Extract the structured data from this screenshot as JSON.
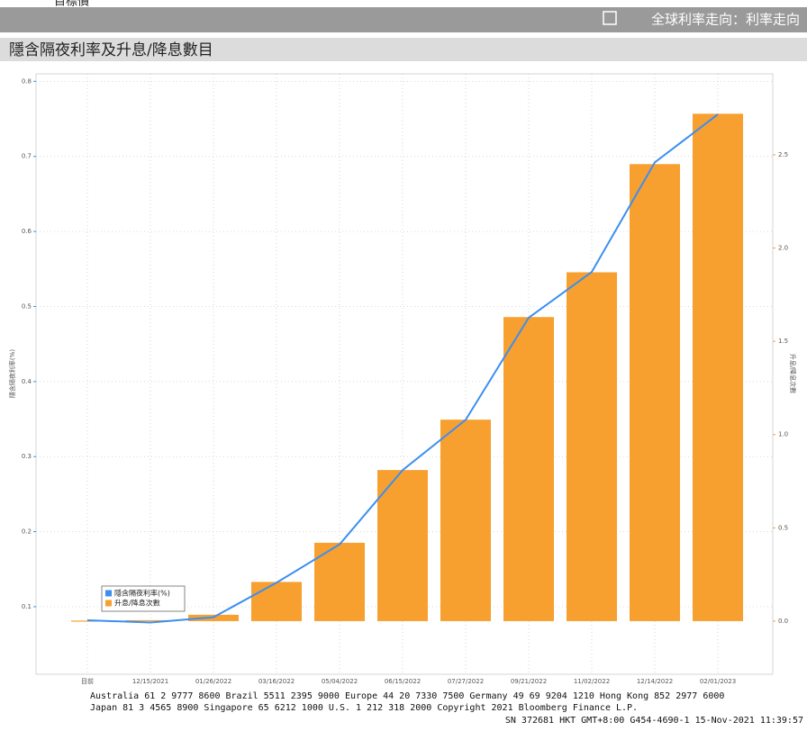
{
  "header": {
    "cut_label": "目標價",
    "right_title": "全球利率走向：利率走向"
  },
  "chart_data": {
    "type": "combo",
    "title": "隱含隔夜利率及升息/降息數目",
    "categories": [
      "目前",
      "12/15/2021",
      "01/26/2022",
      "03/16/2022",
      "05/04/2022",
      "06/15/2022",
      "07/27/2022",
      "09/21/2022",
      "11/02/2022",
      "12/14/2022",
      "02/01/2023"
    ],
    "series": [
      {
        "name": "隱含隔夜利率(%)",
        "type": "line",
        "axis": "y",
        "color": "#3b8ff0",
        "values": [
          0.082,
          0.079,
          0.086,
          0.132,
          0.183,
          0.282,
          0.349,
          0.485,
          0.546,
          0.692,
          0.756
        ]
      },
      {
        "name": "升息/降息次數",
        "type": "bar",
        "axis": "y2",
        "color": "#f7a030",
        "values": [
          0,
          0.005,
          0.034,
          0.21,
          0.42,
          0.81,
          1.08,
          1.63,
          1.87,
          2.45,
          2.72
        ]
      }
    ],
    "ylabel": "隱含隔夜利率(%)",
    "y2label": "升息/降息次數",
    "ylim": [
      0.01,
      0.81
    ],
    "yticks": [
      0.1,
      0.2,
      0.3,
      0.4,
      0.5,
      0.6,
      0.7,
      0.8
    ],
    "y2lim": [
      -0.285,
      2.934
    ],
    "y2ticks": [
      {
        "value": 0,
        "label": "0.0"
      },
      0.5,
      {
        "value": 1,
        "label": "1.0"
      },
      1.5,
      {
        "value": 2,
        "label": "2.0"
      },
      2.5
    ],
    "grid": true
  },
  "footer": {
    "lines": [
      "Australia 61 2 9777 8600 Brazil 5511 2395 9000 Europe 44 20 7330 7500 Germany 49 69 9204 1210 Hong Kong 852 2977 6000",
      "Japan 81 3 4565 8900    Singapore 65 6212 1000    U.S. 1 212 318 2000        Copyright 2021 Bloomberg Finance L.P.",
      "SN 372681 HKT  GMT+8:00 G454-4690-1 15-Nov-2021 11:39:57"
    ]
  }
}
